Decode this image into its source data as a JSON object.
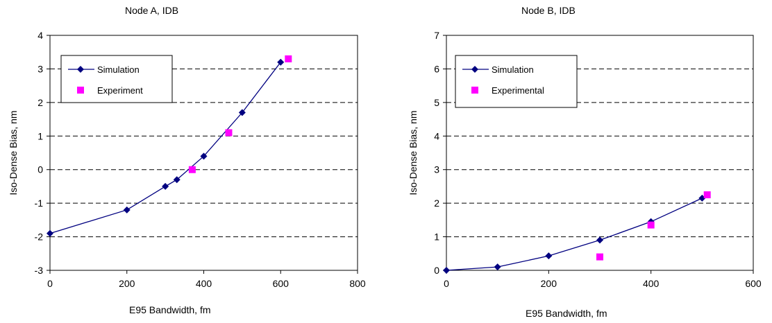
{
  "chart_data": [
    {
      "type": "line",
      "title": "Node A, IDB",
      "xlabel": "E95 Bandwidth, fm",
      "ylabel": "Iso-Dense Bias, nm",
      "xlim": [
        0,
        800
      ],
      "ylim": [
        -3,
        4
      ],
      "xticks": [
        0,
        200,
        400,
        600,
        800
      ],
      "yticks": [
        -3,
        -2,
        -1,
        0,
        1,
        2,
        3,
        4
      ],
      "grid": "horizontal-dashed",
      "legend_placement": "top-left",
      "series": [
        {
          "name": "Simulation",
          "style": "line-diamond",
          "color": "#000080",
          "x": [
            0,
            200,
            300,
            330,
            400,
            500,
            600
          ],
          "y": [
            -1.9,
            -1.2,
            -0.5,
            -0.3,
            0.4,
            1.7,
            3.2
          ]
        },
        {
          "name": "Experiment",
          "style": "square",
          "color": "#FF00FF",
          "x": [
            370,
            465,
            620
          ],
          "y": [
            0.0,
            1.1,
            3.3
          ]
        }
      ]
    },
    {
      "type": "line",
      "title": "Node B, IDB",
      "xlabel": "E95 Bandwidth, fm",
      "ylabel": "Iso-Dense Bias, nm",
      "xlim": [
        0,
        600
      ],
      "ylim": [
        0,
        7
      ],
      "xticks": [
        0,
        200,
        400,
        600
      ],
      "yticks": [
        0,
        1,
        2,
        3,
        4,
        5,
        6,
        7
      ],
      "grid": "horizontal-dashed",
      "legend_placement": "top-left",
      "series": [
        {
          "name": "Simulation",
          "style": "line-diamond",
          "color": "#000080",
          "x": [
            0,
            100,
            200,
            300,
            400,
            500
          ],
          "y": [
            0.0,
            0.1,
            0.43,
            0.9,
            1.45,
            2.15
          ]
        },
        {
          "name": "Experimental",
          "style": "square",
          "color": "#FF00FF",
          "x": [
            300,
            400,
            510
          ],
          "y": [
            0.4,
            1.35,
            2.25
          ]
        }
      ]
    }
  ]
}
